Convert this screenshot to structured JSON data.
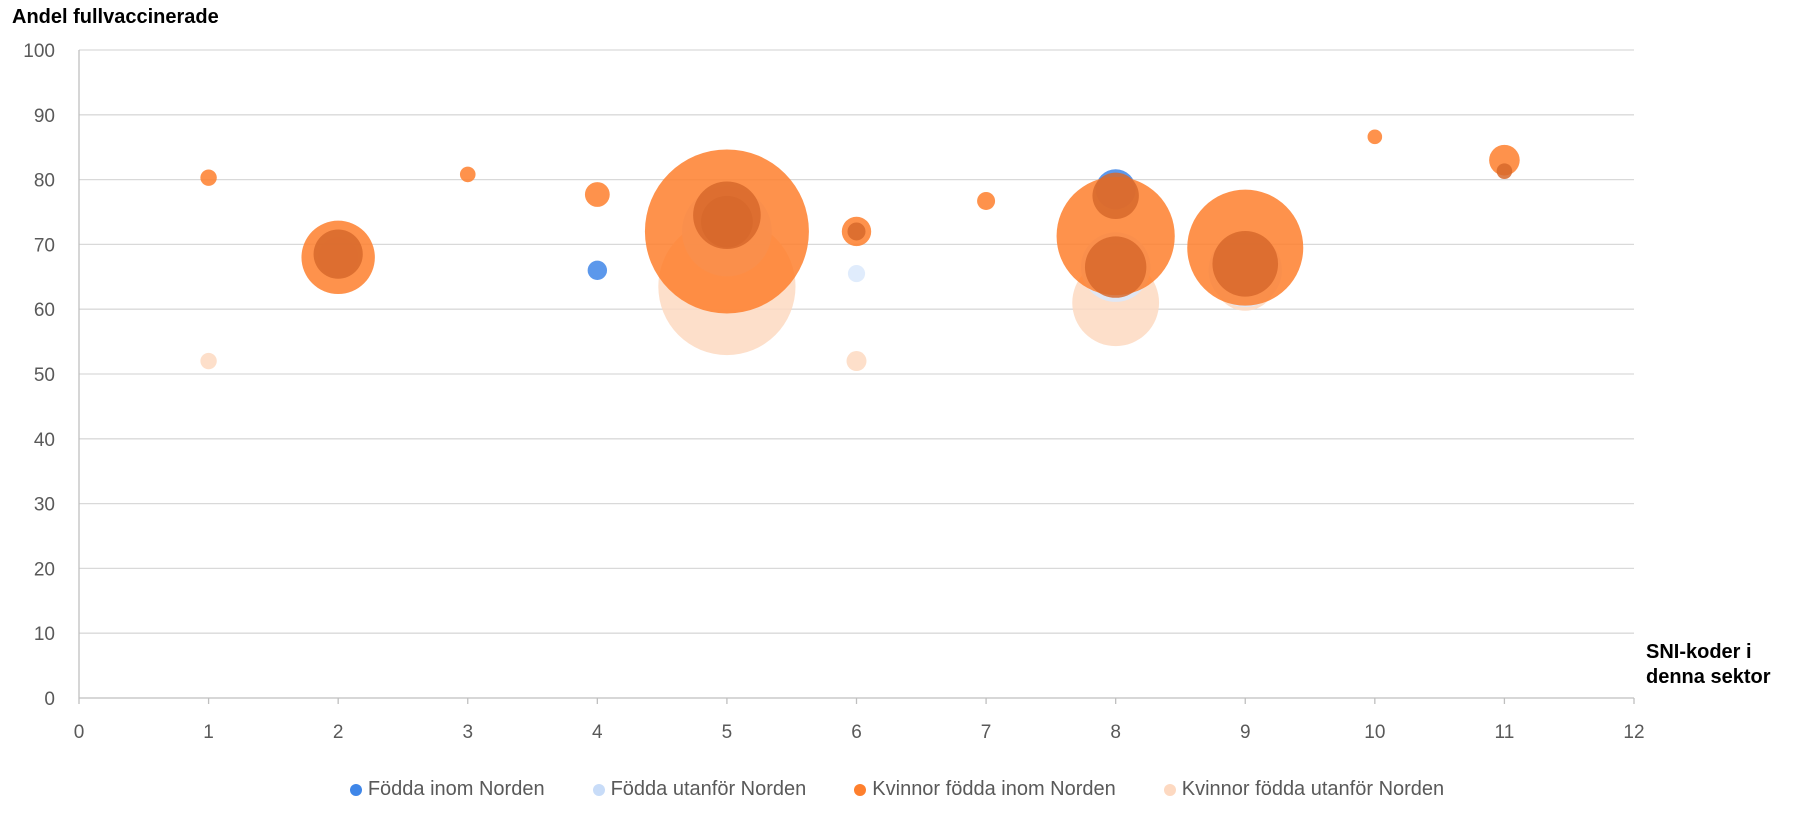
{
  "chart_data": {
    "type": "bubble",
    "ylabel": "Andel fullvaccinerade",
    "xlabel": "SNI-koder i denna sektor",
    "xlim": [
      0,
      12
    ],
    "ylim": [
      0,
      100
    ],
    "xticks": [
      "0",
      "1",
      "2",
      "3",
      "4",
      "5",
      "6",
      "7",
      "8",
      "9",
      "10",
      "11",
      "12"
    ],
    "yticks": [
      "0",
      "10",
      "20",
      "30",
      "40",
      "50",
      "60",
      "70",
      "80",
      "90",
      "100"
    ],
    "grid": "horizontal",
    "legend_position": "bottom",
    "series": [
      {
        "name": "Kvinnor födda utanför Norden",
        "color": "#fdd9c1",
        "points": [
          {
            "x": 1,
            "y": 52,
            "size": 1.0
          },
          {
            "x": 5,
            "y": 63.5,
            "size": 70
          },
          {
            "x": 6,
            "y": 52,
            "size": 1.5
          },
          {
            "x": 8,
            "y": 61,
            "size": 28
          },
          {
            "x": 9,
            "y": 64.5,
            "size": 14
          }
        ]
      },
      {
        "name": "Födda utanför Norden",
        "color": "#dbe9fb",
        "points": [
          {
            "x": 2,
            "y": 68,
            "size": 6
          },
          {
            "x": 5,
            "y": 72,
            "size": 30
          },
          {
            "x": 6,
            "y": 65.5,
            "size": 1.1
          },
          {
            "x": 8,
            "y": 66.5,
            "size": 18
          },
          {
            "x": 9,
            "y": 66,
            "size": 20
          }
        ]
      },
      {
        "name": "Födda inom Norden",
        "color": "#3f86e8",
        "points": [
          {
            "x": 4,
            "y": 66,
            "size": 1.4
          },
          {
            "x": 8,
            "y": 78.5,
            "size": 6
          }
        ]
      },
      {
        "name": "Kvinnor födda inom Norden",
        "color": "#fe7f2d",
        "points": [
          {
            "x": 1,
            "y": 80.3,
            "size": 1.0
          },
          {
            "x": 2,
            "y": 68,
            "size": 20
          },
          {
            "x": 3,
            "y": 80.8,
            "size": 0.9
          },
          {
            "x": 4,
            "y": 77.7,
            "size": 2.3
          },
          {
            "x": 5,
            "y": 72,
            "size": 100
          },
          {
            "x": 6,
            "y": 72,
            "size": 3.2
          },
          {
            "x": 7,
            "y": 76.7,
            "size": 1.2
          },
          {
            "x": 8,
            "y": 71.3,
            "size": 52
          },
          {
            "x": 9,
            "y": 69.5,
            "size": 50
          },
          {
            "x": 10,
            "y": 86.6,
            "size": 0.8
          },
          {
            "x": 11,
            "y": 83,
            "size": 3.5
          }
        ]
      },
      {
        "name": "",
        "color": "#d7682c",
        "points": [
          {
            "x": 2,
            "y": 68.5,
            "size": 9
          },
          {
            "x": 5,
            "y": 73.5,
            "size": 10
          },
          {
            "x": 5,
            "y": 74.5,
            "size": 17
          },
          {
            "x": 6,
            "y": 72,
            "size": 1.2
          },
          {
            "x": 8,
            "y": 77.5,
            "size": 8
          },
          {
            "x": 8,
            "y": 66.5,
            "size": 14
          },
          {
            "x": 9,
            "y": 67,
            "size": 16
          },
          {
            "x": 11,
            "y": 81.3,
            "size": 0.9
          }
        ]
      }
    ],
    "legend": [
      {
        "label": "Födda inom Norden",
        "color": "#3f86e8"
      },
      {
        "label": "Födda utanför Norden",
        "color": "#c8dcf8"
      },
      {
        "label": "Kvinnor födda inom Norden",
        "color": "#fe7f2d"
      },
      {
        "label": "Kvinnor födda utanför Norden",
        "color": "#fdd9c1"
      }
    ]
  }
}
